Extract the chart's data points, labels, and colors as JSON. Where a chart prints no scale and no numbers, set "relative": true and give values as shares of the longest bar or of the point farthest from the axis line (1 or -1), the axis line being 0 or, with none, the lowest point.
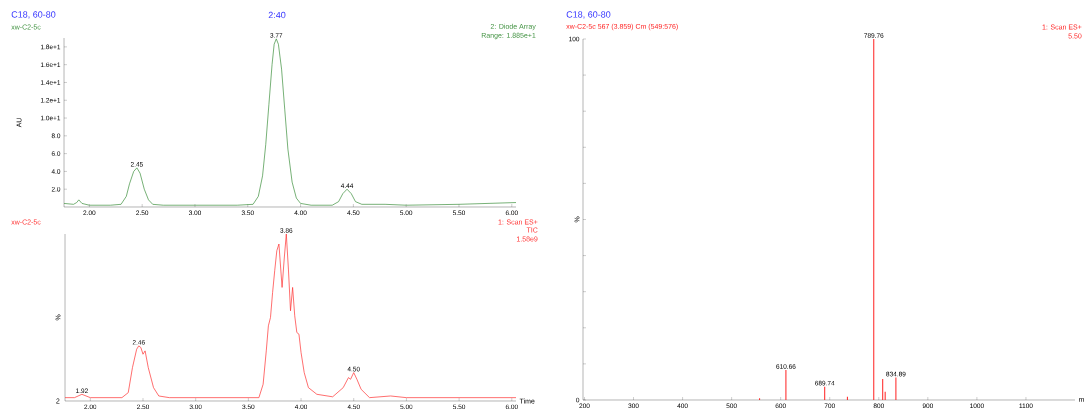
{
  "chart_data": [
    {
      "type": "line",
      "title": "C18, 60-80",
      "ylabel": "AU",
      "color": "#3c8f3c",
      "annotations": [
        "2:40",
        "xw-C2-5c",
        "2: Diode Array",
        "Range: 1.885e+1",
        {
          "text": "2.45",
          "x": 2.45,
          "y": 4.4
        },
        {
          "text": "3.77",
          "x": 3.77,
          "y": 18.9
        },
        {
          "text": "4.44",
          "x": 4.44,
          "y": 2.0
        }
      ],
      "x": [
        1.76,
        1.85,
        1.88,
        1.9,
        1.93,
        2.0,
        2.2,
        2.3,
        2.35,
        2.38,
        2.42,
        2.45,
        2.48,
        2.52,
        2.56,
        2.6,
        2.7,
        3.0,
        3.4,
        3.55,
        3.6,
        3.64,
        3.67,
        3.7,
        3.73,
        3.75,
        3.77,
        3.79,
        3.82,
        3.85,
        3.88,
        3.92,
        3.96,
        4.0,
        4.1,
        4.3,
        4.36,
        4.4,
        4.44,
        4.48,
        4.52,
        4.58,
        4.8,
        5.0,
        5.5,
        6.04
      ],
      "values": [
        0.4,
        0.3,
        0.5,
        0.8,
        0.4,
        0.2,
        0.2,
        0.3,
        1.2,
        2.6,
        4.0,
        4.4,
        3.8,
        2.0,
        0.8,
        0.3,
        0.2,
        0.2,
        0.2,
        0.3,
        1.2,
        3.5,
        7,
        11.5,
        16,
        18.3,
        18.9,
        18.3,
        15.5,
        11,
        6.5,
        2.8,
        1.0,
        0.4,
        0.2,
        0.2,
        0.6,
        1.5,
        2.0,
        1.5,
        0.6,
        0.3,
        0.3,
        0.2,
        0.3,
        0.5
      ],
      "xlim": [
        1.76,
        6.04
      ],
      "ylim": [
        0,
        19
      ],
      "xticks": [
        {
          "value": 2,
          "label": "2.00"
        },
        {
          "value": 2.5,
          "label": "2.50"
        },
        {
          "value": 3,
          "label": "3.00"
        },
        {
          "value": 3.5,
          "label": "3.50"
        },
        {
          "value": 4,
          "label": "4.00"
        },
        {
          "value": 4.5,
          "label": "4.50"
        },
        {
          "value": 5,
          "label": "5.00"
        },
        {
          "value": 5.5,
          "label": "5.50"
        },
        {
          "value": 6,
          "label": "6.00"
        }
      ],
      "yticks": [
        {
          "value": 2,
          "label": "2.0"
        },
        {
          "value": 4,
          "label": "4.0"
        },
        {
          "value": 6,
          "label": "6.0"
        },
        {
          "value": 8,
          "label": "8.0"
        },
        {
          "value": 10,
          "label": "1.0e+1"
        },
        {
          "value": 12,
          "label": "1.2e+1"
        },
        {
          "value": 14,
          "label": "1.4e+1"
        },
        {
          "value": 16,
          "label": "1.6e+1"
        },
        {
          "value": 18,
          "label": "1.8e+1"
        }
      ]
    },
    {
      "type": "line",
      "relative": true,
      "ylabel": "%",
      "xlabel": "Time",
      "color": "#ff3030",
      "annotations": [
        "xw-C2-5c",
        "1: Scan ES+",
        "TIC",
        "1.58e9",
        "2",
        {
          "text": "1.92",
          "x": 1.92,
          "y": 0.04
        },
        {
          "text": "2.46",
          "x": 2.46,
          "y": 0.33
        },
        {
          "text": "3.86",
          "x": 3.86,
          "y": 1.0
        },
        {
          "text": "4.50",
          "x": 4.5,
          "y": 0.17
        }
      ],
      "x": [
        1.76,
        1.85,
        1.92,
        2.0,
        2.15,
        2.3,
        2.36,
        2.4,
        2.44,
        2.46,
        2.48,
        2.5,
        2.52,
        2.55,
        2.6,
        2.65,
        2.75,
        3.0,
        3.4,
        3.55,
        3.6,
        3.64,
        3.67,
        3.69,
        3.71,
        3.73,
        3.75,
        3.77,
        3.79,
        3.82,
        3.84,
        3.86,
        3.88,
        3.9,
        3.92,
        3.94,
        3.96,
        3.98,
        4.0,
        4.03,
        4.07,
        4.15,
        4.3,
        4.4,
        4.45,
        4.47,
        4.5,
        4.53,
        4.57,
        4.65,
        4.85,
        5.0,
        5.2,
        5.4,
        5.6,
        6.04
      ],
      "values": [
        0.02,
        0.02,
        0.04,
        0.02,
        0.02,
        0.02,
        0.05,
        0.2,
        0.31,
        0.33,
        0.32,
        0.28,
        0.3,
        0.2,
        0.08,
        0.03,
        0.02,
        0.02,
        0.02,
        0.02,
        0.02,
        0.1,
        0.3,
        0.45,
        0.5,
        0.65,
        0.78,
        0.9,
        0.94,
        0.68,
        0.85,
        1.0,
        0.79,
        0.54,
        0.68,
        0.51,
        0.41,
        0.4,
        0.29,
        0.17,
        0.08,
        0.04,
        0.025,
        0.08,
        0.14,
        0.13,
        0.17,
        0.13,
        0.07,
        0.02,
        0.03,
        0.02,
        0.02,
        0.02,
        0.02,
        0.02
      ],
      "xlim": [
        1.76,
        6.04
      ],
      "xticks": [
        {
          "value": 2,
          "label": "2.00"
        },
        {
          "value": 2.5,
          "label": "2.50"
        },
        {
          "value": 3,
          "label": "3.00"
        },
        {
          "value": 3.5,
          "label": "3.50"
        },
        {
          "value": 4,
          "label": "4.00"
        },
        {
          "value": 4.5,
          "label": "4.50"
        },
        {
          "value": 5,
          "label": "5.00"
        },
        {
          "value": 5.5,
          "label": "5.50"
        },
        {
          "value": 6,
          "label": "6.00"
        }
      ]
    },
    {
      "type": "bar",
      "title": "C18, 60-80",
      "subtitle": "xw-C2-5c 567 (3.859) Cm (549:576)",
      "ylabel": "%",
      "xlabel": "m",
      "color": "#ff2020",
      "annotations": [
        "1: Scan ES+",
        "5.50",
        {
          "text": "610.66",
          "x": 610.66,
          "y": 8.3
        },
        {
          "text": "689.74",
          "x": 689.74,
          "y": 3.7
        },
        {
          "text": "789.76",
          "x": 789.76,
          "y": 100
        },
        {
          "text": "834.89",
          "x": 834.89,
          "y": 6.2
        }
      ],
      "x": [
        557,
        610.66,
        689.74,
        736,
        789.76,
        808,
        813,
        834.89
      ],
      "values": [
        0.5,
        8.3,
        3.7,
        0.9,
        100,
        5.8,
        2.3,
        6.2
      ],
      "xlim": [
        197,
        1200
      ],
      "ylim": [
        0,
        100
      ],
      "xticks": [
        {
          "value": 200,
          "label": "200"
        },
        {
          "value": 300,
          "label": "300"
        },
        {
          "value": 400,
          "label": "400"
        },
        {
          "value": 500,
          "label": "500"
        },
        {
          "value": 600,
          "label": "600"
        },
        {
          "value": 700,
          "label": "700"
        },
        {
          "value": 800,
          "label": "800"
        },
        {
          "value": 900,
          "label": "900"
        },
        {
          "value": 1000,
          "label": "1000"
        },
        {
          "value": 1100,
          "label": "1100"
        }
      ],
      "yticks": [
        {
          "value": 0,
          "label": "0"
        },
        {
          "value": 10,
          "label": null
        },
        {
          "value": 20,
          "label": null
        },
        {
          "value": 30,
          "label": null
        },
        {
          "value": 40,
          "label": null
        },
        {
          "value": 50,
          "label": null
        },
        {
          "value": 60,
          "label": null
        },
        {
          "value": 70,
          "label": null
        },
        {
          "value": 80,
          "label": null
        },
        {
          "value": 90,
          "label": null
        },
        {
          "value": 100,
          "label": "100"
        }
      ]
    }
  ]
}
